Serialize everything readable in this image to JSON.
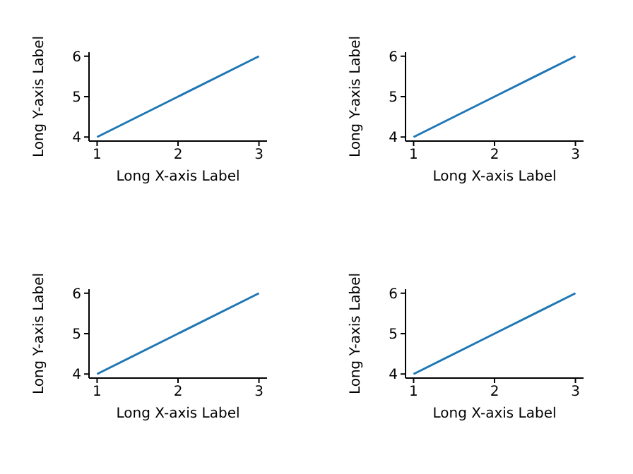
{
  "chart_data": [
    {
      "type": "line",
      "xlabel": "Long X-axis Label",
      "ylabel": "Long Y-axis Label",
      "x": [
        1,
        2,
        3
      ],
      "values": [
        4,
        5,
        6
      ],
      "color": "#1f77b4",
      "xlim": [
        0.9,
        3.1
      ],
      "ylim": [
        3.9,
        6.1
      ],
      "xticks": [
        1,
        2,
        3
      ],
      "yticks": [
        4,
        5,
        6
      ]
    },
    {
      "type": "line",
      "xlabel": "Long X-axis Label",
      "ylabel": "Long Y-axis Label",
      "x": [
        1,
        2,
        3
      ],
      "values": [
        4,
        5,
        6
      ],
      "color": "#1f77b4",
      "xlim": [
        0.9,
        3.1
      ],
      "ylim": [
        3.9,
        6.1
      ],
      "xticks": [
        1,
        2,
        3
      ],
      "yticks": [
        4,
        5,
        6
      ]
    },
    {
      "type": "line",
      "xlabel": "Long X-axis Label",
      "ylabel": "Long Y-axis Label",
      "x": [
        1,
        2,
        3
      ],
      "values": [
        4,
        5,
        6
      ],
      "color": "#1f77b4",
      "xlim": [
        0.9,
        3.1
      ],
      "ylim": [
        3.9,
        6.1
      ],
      "xticks": [
        1,
        2,
        3
      ],
      "yticks": [
        4,
        5,
        6
      ]
    },
    {
      "type": "line",
      "xlabel": "Long X-axis Label",
      "ylabel": "Long Y-axis Label",
      "x": [
        1,
        2,
        3
      ],
      "values": [
        4,
        5,
        6
      ],
      "color": "#1f77b4",
      "xlim": [
        0.9,
        3.1
      ],
      "ylim": [
        3.9,
        6.1
      ],
      "xticks": [
        1,
        2,
        3
      ],
      "yticks": [
        4,
        5,
        6
      ]
    }
  ]
}
